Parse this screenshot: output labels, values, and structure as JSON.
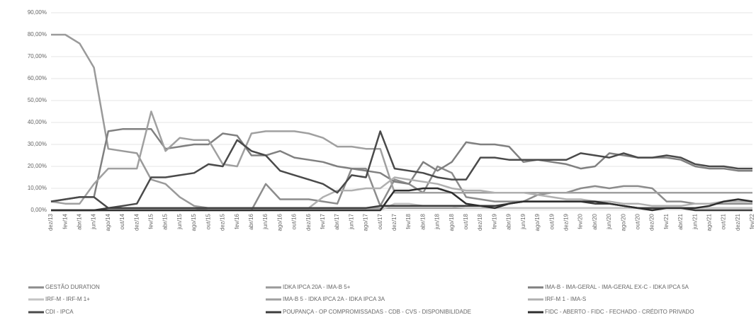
{
  "chart_data": {
    "type": "line",
    "categories": [
      "dez/13",
      "fev/14",
      "abr/14",
      "jun/14",
      "ago/14",
      "out/14",
      "dez/14",
      "fev/15",
      "abr/15",
      "jun/15",
      "ago/15",
      "out/15",
      "dez/15",
      "fev/16",
      "abr/16",
      "jun/16",
      "ago/16",
      "out/16",
      "dez/16",
      "fev/17",
      "abr/17",
      "jun/17",
      "ago/17",
      "out/17",
      "dez/17",
      "fev/18",
      "abr/18",
      "jun/18",
      "ago/18",
      "out/18",
      "dez/18",
      "fev/19",
      "abr/19",
      "jun/19",
      "ago/19",
      "out/19",
      "dez/19",
      "fev/20",
      "abr/20",
      "jun/20",
      "ago/20",
      "out/20",
      "dez/20",
      "fev/21",
      "abr/21",
      "jun/21",
      "ago/21",
      "out/21",
      "dez/21",
      "fev/22"
    ],
    "ylim": [
      0,
      90
    ],
    "yticks": [
      {
        "value": 0,
        "label": "0,00%"
      },
      {
        "value": 10,
        "label": "10,00%"
      },
      {
        "value": 20,
        "label": "20,00%"
      },
      {
        "value": 30,
        "label": "30,00%"
      },
      {
        "value": 40,
        "label": "40,00%"
      },
      {
        "value": 50,
        "label": "50,00%"
      },
      {
        "value": 60,
        "label": "60,00%"
      },
      {
        "value": 70,
        "label": "70,00%"
      },
      {
        "value": 80,
        "label": "80,00%"
      },
      {
        "value": 90,
        "label": "90,00%"
      }
    ],
    "grid": true,
    "legend": "bottom",
    "series": [
      {
        "name": "GESTÃO DURATION",
        "color": "#8c8c8c",
        "values": [
          0,
          0,
          0,
          0,
          0,
          0,
          0,
          0,
          0,
          0,
          0,
          0,
          0,
          0,
          0,
          12,
          5,
          5,
          5,
          4,
          3,
          19,
          19,
          2,
          14,
          12,
          8,
          20,
          17,
          6,
          5,
          4,
          4,
          4,
          7,
          8,
          8,
          10,
          11,
          10,
          11,
          11,
          10,
          4,
          4,
          3,
          3,
          3,
          3,
          3
        ]
      },
      {
        "name": "IDKA IPCA 20A - IMA-B 5+",
        "color": "#9a9a9a",
        "values": [
          80,
          80,
          76,
          65,
          28,
          27,
          26,
          14,
          12,
          6,
          2,
          1,
          1,
          1,
          1,
          1,
          1,
          1,
          1,
          1,
          1,
          1,
          1,
          1,
          1,
          1,
          1,
          1,
          1,
          1,
          1,
          1,
          1,
          1,
          1,
          1,
          1,
          1,
          1,
          1,
          1,
          1,
          1,
          1,
          1,
          1,
          1,
          1,
          1,
          1
        ]
      },
      {
        "name": "IMA-B - IMA-GERAL - IMA-GERAL EX-C - IDKA IPCA 5A",
        "color": "#808080",
        "values": [
          4,
          5,
          6,
          6,
          36,
          37,
          37,
          37,
          28,
          29,
          30,
          30,
          35,
          34,
          25,
          25,
          27,
          24,
          23,
          22,
          20,
          19,
          18,
          17,
          13,
          12,
          22,
          18,
          22,
          31,
          30,
          30,
          29,
          22,
          23,
          22,
          21,
          19,
          20,
          26,
          25,
          24,
          24,
          24,
          23,
          20,
          19,
          19,
          18,
          18
        ]
      },
      {
        "name": "IRF-M - IRF-M 1+",
        "color": "#c4c4c4",
        "values": [
          0,
          0,
          0,
          0,
          0,
          0,
          0,
          0,
          0,
          0,
          0,
          0,
          0,
          0,
          0,
          0,
          0,
          0,
          0,
          0,
          0,
          0,
          0,
          0,
          3,
          3,
          2,
          2,
          2,
          1,
          1,
          1,
          1,
          1,
          1,
          1,
          1,
          1,
          1,
          1,
          1,
          1,
          1,
          1,
          1,
          1,
          1,
          1,
          1,
          1
        ]
      },
      {
        "name": "IMA-B 5 - IDKA IPCA 2A - IDKA IPCA 3A",
        "color": "#a0a0a0",
        "values": [
          4,
          3,
          3,
          12,
          19,
          19,
          19,
          45,
          27,
          33,
          32,
          32,
          21,
          20,
          35,
          36,
          36,
          36,
          35,
          33,
          29,
          29,
          28,
          28,
          8,
          8,
          8,
          8,
          8,
          8,
          8,
          8,
          8,
          8,
          8,
          8,
          8,
          8,
          8,
          8,
          8,
          8,
          8,
          8,
          8,
          8,
          8,
          8,
          8,
          8
        ]
      },
      {
        "name": "IRF-M 1 - IMA-S",
        "color": "#b0b0b0",
        "values": [
          0,
          0,
          0,
          0,
          0,
          0,
          0,
          0,
          0,
          0,
          0,
          1,
          1,
          1,
          1,
          1,
          1,
          1,
          1,
          6,
          9,
          9,
          10,
          10,
          15,
          14,
          13,
          12,
          10,
          9,
          9,
          8,
          8,
          8,
          7,
          6,
          5,
          5,
          4,
          4,
          3,
          3,
          2,
          2,
          2,
          3,
          3,
          4,
          4,
          4
        ]
      },
      {
        "name": "CDI - IPCA",
        "color": "#4a4a4a",
        "values": [
          4,
          5,
          6,
          6,
          1,
          2,
          3,
          15,
          15,
          16,
          17,
          21,
          20,
          32,
          27,
          25,
          18,
          16,
          14,
          12,
          8,
          16,
          15,
          36,
          19,
          18,
          17,
          15,
          14,
          14,
          24,
          24,
          23,
          23,
          23,
          23,
          23,
          26,
          25,
          24,
          26,
          24,
          24,
          25,
          24,
          21,
          20,
          20,
          19,
          19
        ]
      },
      {
        "name": "POUPANÇA - OP COMPROMISSADAS - CDB - CVS - DISPONIBILIDADE",
        "color": "#3c3c3c",
        "values": [
          0,
          0,
          0,
          0,
          1,
          1,
          1,
          1,
          1,
          1,
          1,
          1,
          1,
          1,
          1,
          1,
          1,
          1,
          1,
          1,
          1,
          1,
          1,
          2,
          2,
          2,
          2,
          2,
          2,
          2,
          2,
          2,
          3,
          4,
          4,
          4,
          4,
          4,
          3,
          3,
          2,
          1,
          1,
          1,
          1,
          0,
          0,
          0,
          0,
          0
        ]
      },
      {
        "name": "FIDC - ABERTO - FIDC - FECHADO - CRÉDITO PRIVADO",
        "color": "#2e2e2e",
        "values": [
          0,
          0,
          0,
          0,
          0,
          0,
          0,
          0,
          0,
          0,
          0,
          0,
          0,
          0,
          0,
          0,
          0,
          0,
          0,
          0,
          0,
          0,
          0,
          0,
          9,
          9,
          10,
          10,
          8,
          3,
          2,
          1,
          3,
          4,
          4,
          4,
          4,
          4,
          4,
          3,
          2,
          1,
          0,
          1,
          1,
          1,
          2,
          4,
          5,
          4
        ]
      }
    ]
  }
}
